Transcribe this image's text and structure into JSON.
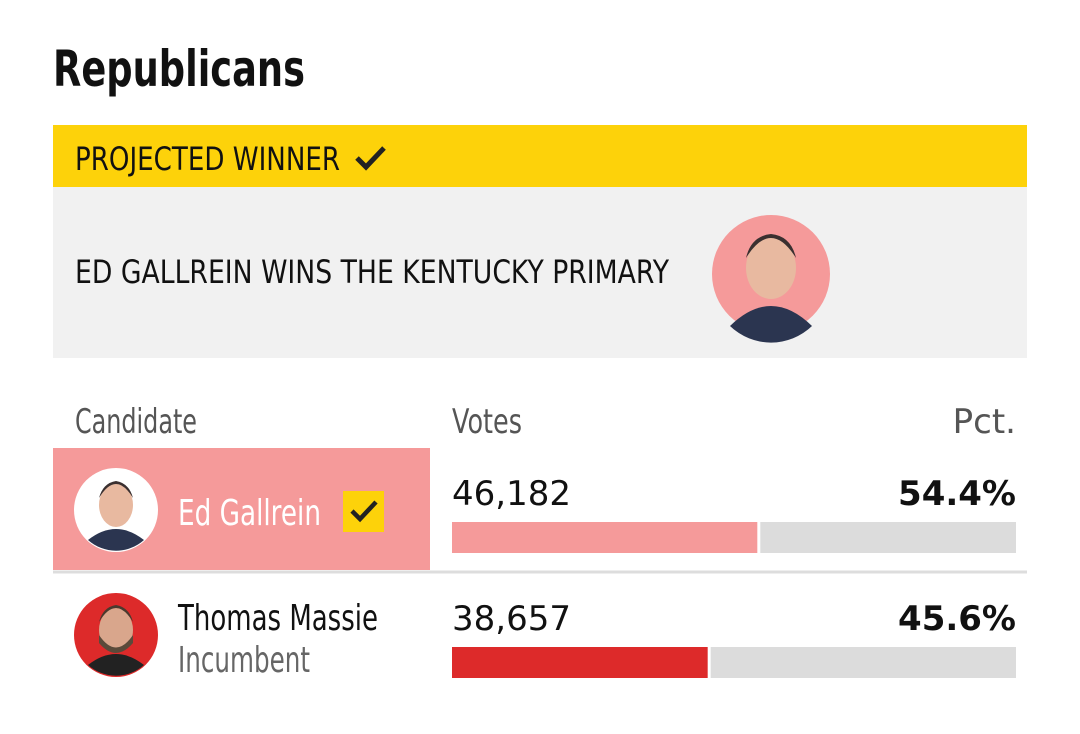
{
  "title": "Republicans",
  "banner": {
    "label": "PROJECTED WINNER",
    "headline": "ED GALLREIN WINS THE KENTUCKY PRIMARY"
  },
  "table": {
    "headers": [
      "Candidate",
      "Votes",
      "Pct."
    ],
    "rows": [
      {
        "name": "Ed Gallrein",
        "votes": "46,182",
        "pct": 54.4,
        "pct_label": "54.4%",
        "color": "#f59a9a"
      },
      {
        "name": "Thomas Massie",
        "note": "Incumbent",
        "votes": "38,657",
        "pct": 45.6,
        "pct_label": "45.6%",
        "color": "#dd2a2a"
      }
    ]
  }
}
